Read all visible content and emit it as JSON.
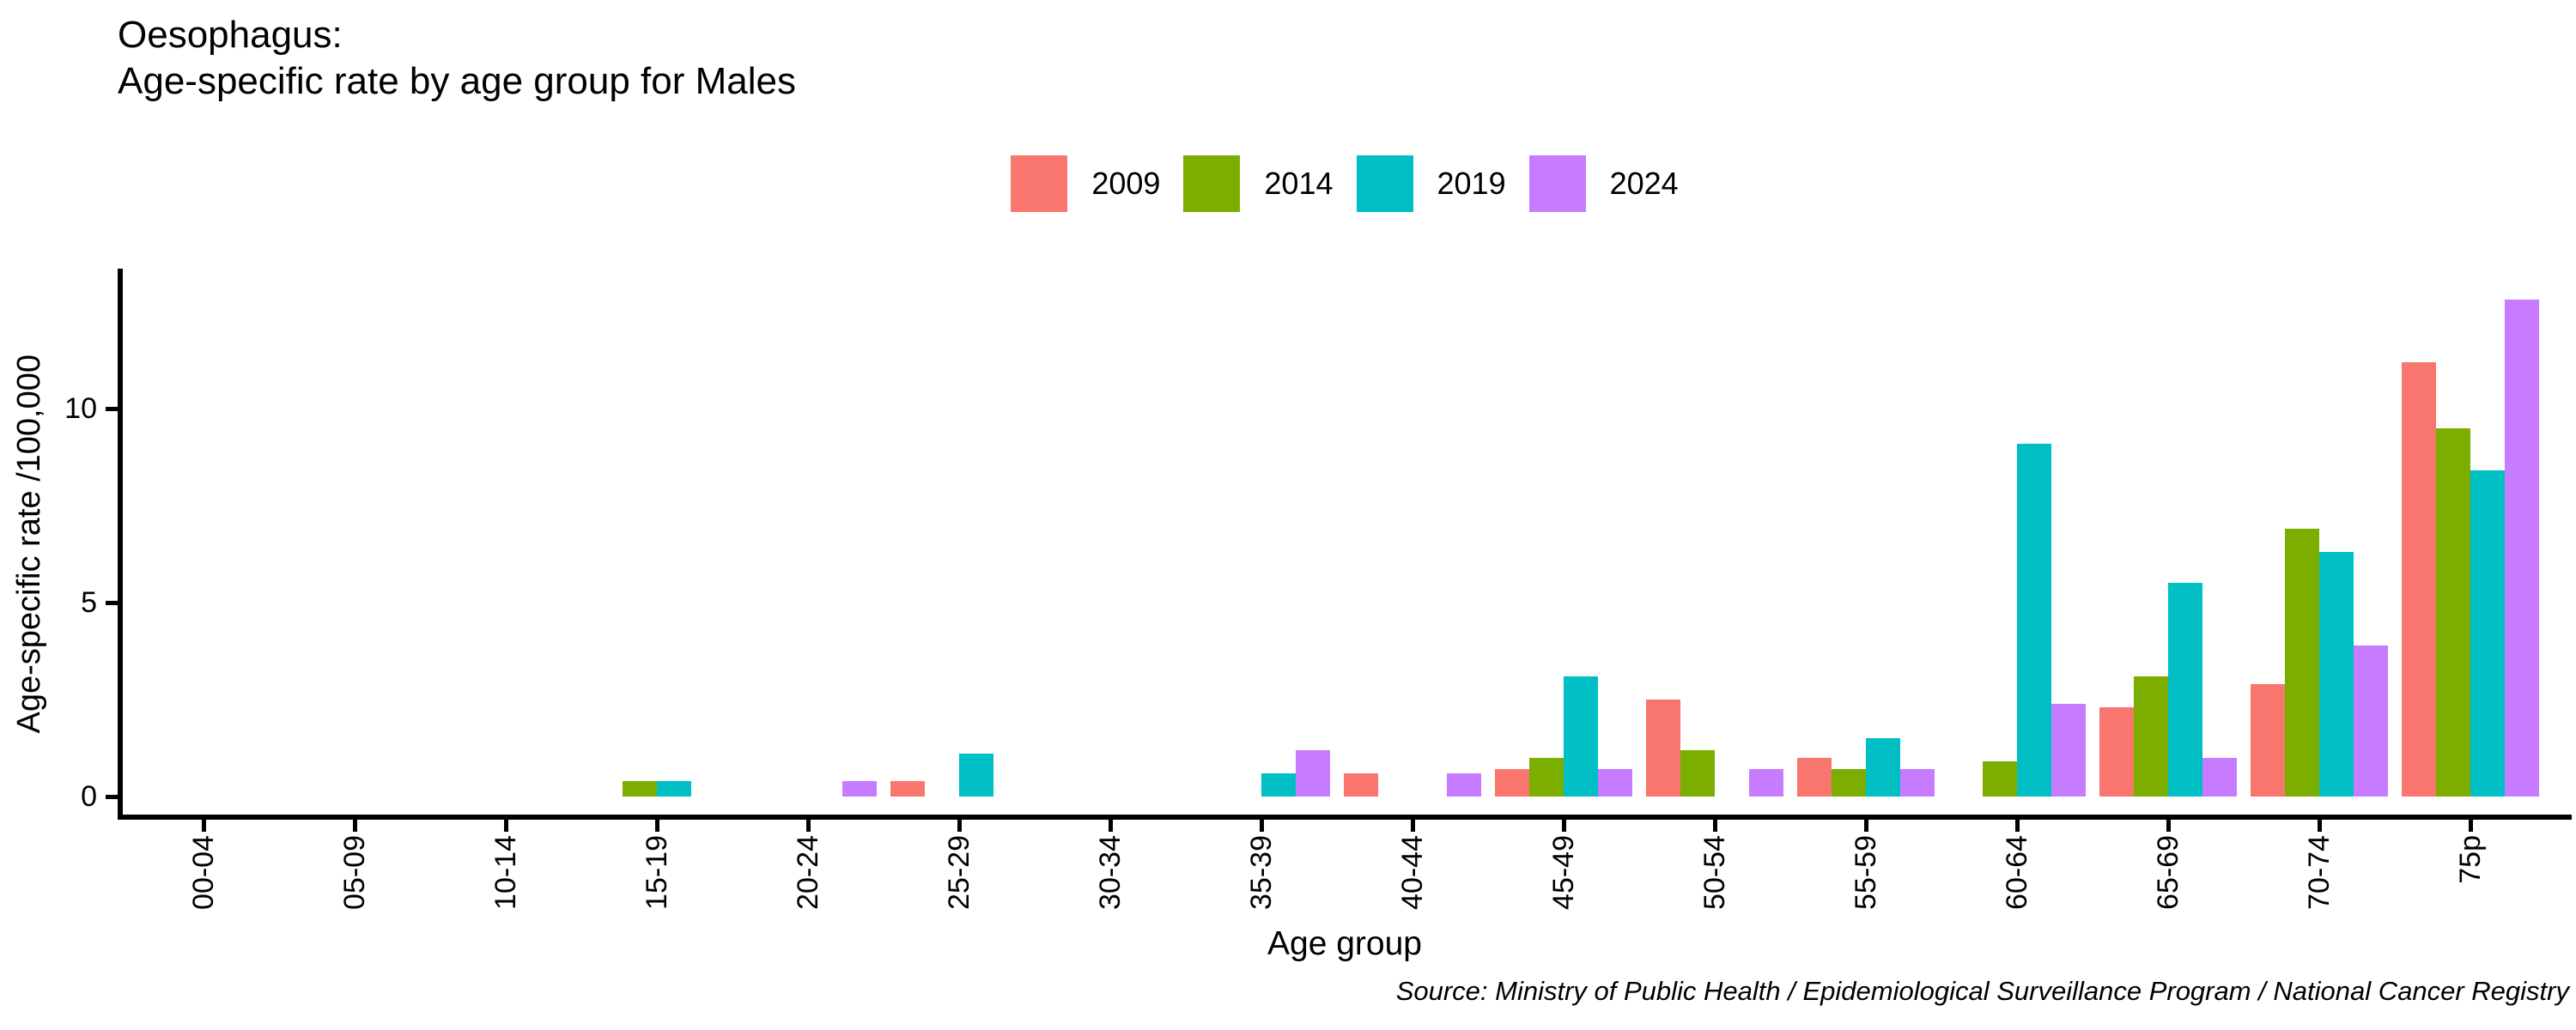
{
  "title": {
    "line1": "Oesophagus:",
    "line2": "Age-specific rate by age group for Males"
  },
  "legend": {
    "items": [
      {
        "label": "2009",
        "color": "#F8766D"
      },
      {
        "label": "2014",
        "color": "#7CAE00"
      },
      {
        "label": "2019",
        "color": "#00BFC4"
      },
      {
        "label": "2024",
        "color": "#C77CFF"
      }
    ]
  },
  "axes": {
    "y_title": "Age-specific rate /100,000",
    "x_title": "Age group",
    "y_ticks": [
      "0",
      "5",
      "10"
    ]
  },
  "source": "Source: Ministry of Public Health / Epidemiological Surveillance Program / National Cancer Registry",
  "chart_data": {
    "type": "bar",
    "title": "Oesophagus: Age-specific rate by age group for Males",
    "xlabel": "Age group",
    "ylabel": "Age-specific rate /100,000",
    "ylim": [
      0,
      13.6
    ],
    "y_tick_values": [
      0,
      5,
      10
    ],
    "grid": false,
    "legend_position": "top-center",
    "categories": [
      "00-04",
      "05-09",
      "10-14",
      "15-19",
      "20-24",
      "25-29",
      "30-34",
      "35-39",
      "40-44",
      "45-49",
      "50-54",
      "55-59",
      "60-64",
      "65-69",
      "70-74",
      "75p"
    ],
    "series": [
      {
        "name": "2009",
        "color": "#F8766D",
        "values": [
          null,
          null,
          null,
          null,
          null,
          0.4,
          null,
          null,
          0.6,
          0.7,
          2.5,
          1.0,
          null,
          2.3,
          2.9,
          11.2
        ]
      },
      {
        "name": "2014",
        "color": "#7CAE00",
        "values": [
          null,
          null,
          null,
          0.4,
          null,
          null,
          null,
          null,
          null,
          1.0,
          1.2,
          0.7,
          0.9,
          3.1,
          6.9,
          9.5
        ]
      },
      {
        "name": "2019",
        "color": "#00BFC4",
        "values": [
          null,
          null,
          null,
          0.4,
          null,
          1.1,
          null,
          0.6,
          null,
          3.1,
          null,
          1.5,
          9.1,
          5.5,
          6.3,
          8.4
        ]
      },
      {
        "name": "2024",
        "color": "#C77CFF",
        "values": [
          null,
          null,
          null,
          null,
          0.4,
          null,
          null,
          1.2,
          0.6,
          0.7,
          0.7,
          0.7,
          2.4,
          1.0,
          3.9,
          12.8
        ]
      }
    ]
  }
}
